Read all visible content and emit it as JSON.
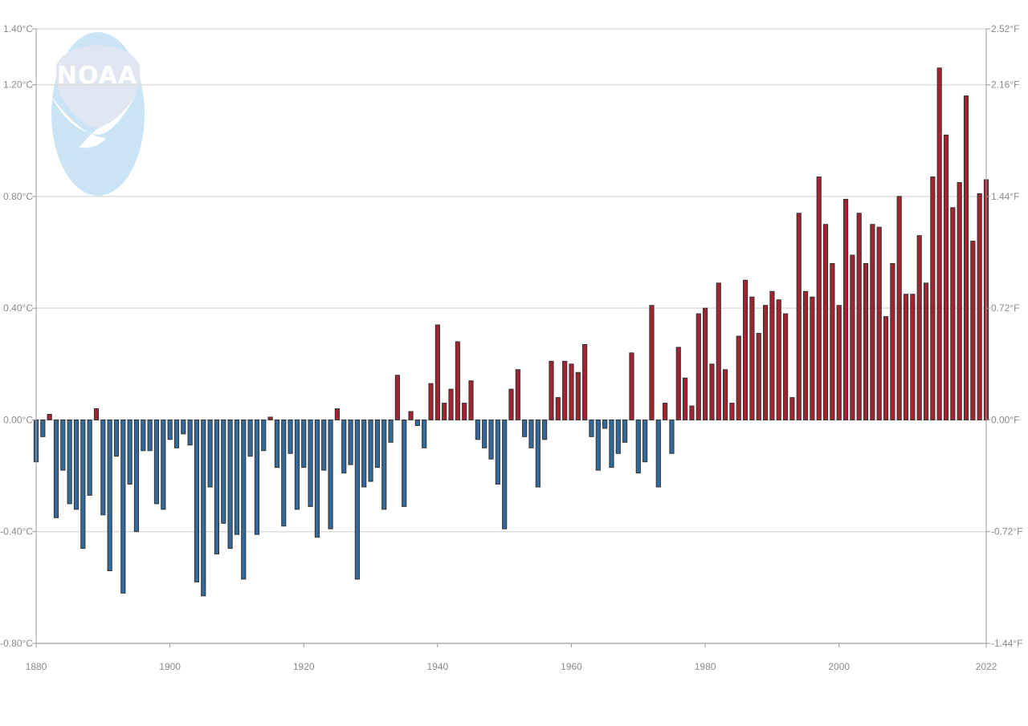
{
  "logo": {
    "text": "NOAA",
    "icon": "noaa-logo"
  },
  "chart_data": {
    "type": "bar",
    "title": "",
    "xlabel": "",
    "ylabel": "",
    "x_range": [
      1880,
      2022
    ],
    "x_ticks": [
      "1880",
      "1900",
      "1920",
      "1940",
      "1960",
      "1980",
      "2000",
      "2022"
    ],
    "ylim": [
      -0.8,
      1.4
    ],
    "y_left_ticks": [
      "-0.80°C",
      "-0.40°C",
      "0.00°C",
      "0.40°C",
      "0.80°C",
      "1.20°C",
      "1.40°C"
    ],
    "y_left_values": [
      -0.8,
      -0.4,
      0.0,
      0.4,
      0.8,
      1.2,
      1.4
    ],
    "y_right_ticks": [
      "-1.44°F",
      "-0.72°F",
      "0.00°F",
      "0.72°F",
      "1.44°F",
      "2.16°F",
      "2.52°F"
    ],
    "grid": true,
    "colors": {
      "positive": "#a32330",
      "negative": "#336a9c",
      "outline": "#333333",
      "grid": "#dddddd",
      "axis": "#999999"
    },
    "series": [
      {
        "years": [
          1880,
          1881,
          1882,
          1883,
          1884,
          1885,
          1886,
          1887,
          1888,
          1889,
          1890,
          1891,
          1892,
          1893,
          1894,
          1895,
          1896,
          1897,
          1898,
          1899,
          1900,
          1901,
          1902,
          1903,
          1904,
          1905,
          1906,
          1907,
          1908,
          1909,
          1910,
          1911,
          1912,
          1913,
          1914,
          1915,
          1916,
          1917,
          1918,
          1919,
          1920,
          1921,
          1922,
          1923,
          1924,
          1925,
          1926,
          1927,
          1928,
          1929,
          1930,
          1931,
          1932,
          1933,
          1934,
          1935,
          1936,
          1937,
          1938,
          1939,
          1940,
          1941,
          1942,
          1943,
          1944,
          1945,
          1946,
          1947,
          1948,
          1949,
          1950,
          1951,
          1952,
          1953,
          1954,
          1955,
          1956,
          1957,
          1958,
          1959,
          1960,
          1961,
          1962,
          1963,
          1964,
          1965,
          1966,
          1967,
          1968,
          1969,
          1970,
          1971,
          1972,
          1973,
          1974,
          1975,
          1976,
          1977,
          1978,
          1979,
          1980,
          1981,
          1982,
          1983,
          1984,
          1985,
          1986,
          1987,
          1988,
          1989,
          1990,
          1991,
          1992,
          1993,
          1994,
          1995,
          1996,
          1997,
          1998,
          1999,
          2000,
          2001,
          2002,
          2003,
          2004,
          2005,
          2006,
          2007,
          2008,
          2009,
          2010,
          2011,
          2012,
          2013,
          2014,
          2015,
          2016,
          2017,
          2018,
          2019,
          2020,
          2021,
          2022
        ],
        "values": [
          -0.15,
          -0.06,
          0.02,
          -0.35,
          -0.18,
          -0.3,
          -0.32,
          -0.46,
          -0.27,
          0.04,
          -0.34,
          -0.54,
          -0.13,
          -0.62,
          -0.23,
          -0.4,
          -0.11,
          -0.11,
          -0.3,
          -0.32,
          -0.07,
          -0.1,
          -0.05,
          -0.09,
          -0.58,
          -0.63,
          -0.24,
          -0.48,
          -0.37,
          -0.46,
          -0.41,
          -0.57,
          -0.13,
          -0.41,
          -0.11,
          0.01,
          -0.17,
          -0.38,
          -0.12,
          -0.32,
          -0.17,
          -0.31,
          -0.42,
          -0.18,
          -0.39,
          0.04,
          -0.19,
          -0.16,
          -0.57,
          -0.24,
          -0.22,
          -0.17,
          -0.32,
          -0.08,
          0.16,
          -0.31,
          0.03,
          -0.02,
          -0.1,
          0.13,
          0.34,
          0.06,
          0.11,
          0.28,
          0.06,
          0.14,
          -0.07,
          -0.1,
          -0.14,
          -0.23,
          -0.39,
          0.11,
          0.18,
          -0.06,
          -0.1,
          -0.24,
          -0.07,
          0.21,
          0.08,
          0.21,
          0.2,
          0.17,
          0.27,
          -0.06,
          -0.18,
          -0.03,
          -0.17,
          -0.12,
          -0.08,
          0.24,
          -0.19,
          -0.15,
          0.41,
          -0.24,
          0.06,
          -0.12,
          0.26,
          0.15,
          0.05,
          0.38,
          0.4,
          0.2,
          0.49,
          0.18,
          0.06,
          0.3,
          0.5,
          0.44,
          0.31,
          0.41,
          0.46,
          0.43,
          0.38,
          0.08,
          0.74,
          0.46,
          0.44,
          0.87,
          0.7,
          0.56,
          0.41,
          0.79,
          0.59,
          0.74,
          0.56,
          0.7,
          0.69,
          0.37,
          0.56,
          0.8,
          0.45,
          0.45,
          0.66,
          0.49,
          0.87,
          1.26,
          1.02,
          0.76,
          0.85,
          1.16,
          0.64,
          0.81,
          0.86
        ]
      }
    ]
  }
}
